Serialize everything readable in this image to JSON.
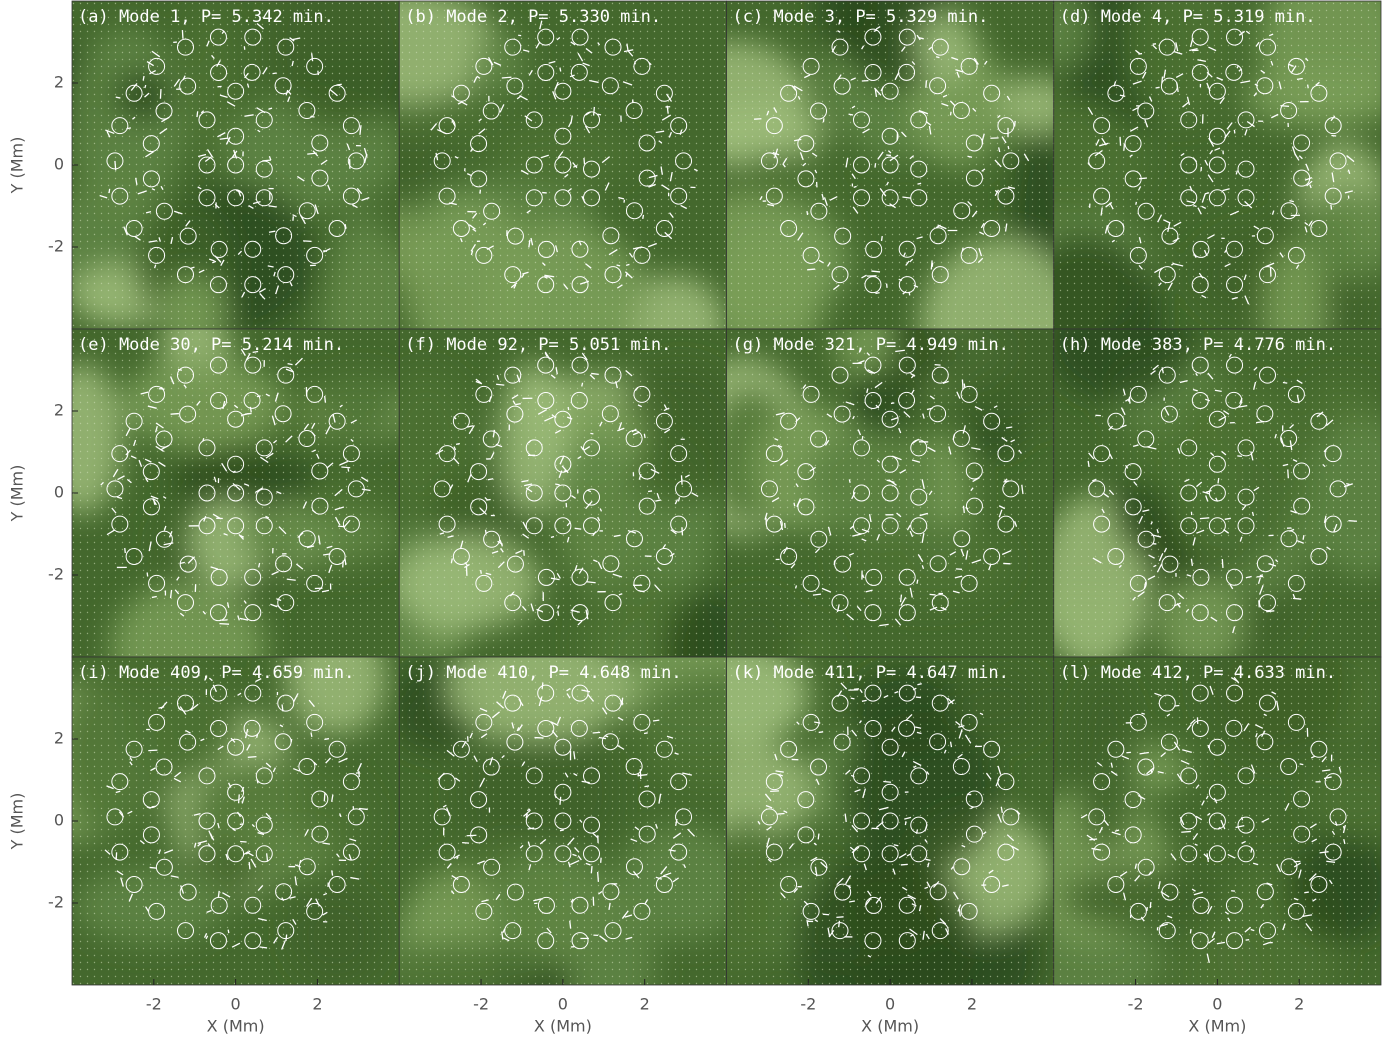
{
  "chart_data": [
    {
      "type": "vector-field",
      "title": "(a) Mode 1, P= 5.342 min.",
      "xlim": [
        -4,
        4
      ],
      "ylim": [
        -4,
        4
      ],
      "yticks": [
        -2,
        0,
        2
      ],
      "y_label": "Y (Mm)"
    },
    {
      "type": "vector-field",
      "title": "(b) Mode 2, P= 5.330 min.",
      "xlim": [
        -4,
        4
      ],
      "ylim": [
        -4,
        4
      ]
    },
    {
      "type": "vector-field",
      "title": "(c) Mode 3, P= 5.329 min.",
      "xlim": [
        -4,
        4
      ],
      "ylim": [
        -4,
        4
      ]
    },
    {
      "type": "vector-field",
      "title": "(d) Mode 4, P= 5.319 min.",
      "xlim": [
        -4,
        4
      ],
      "ylim": [
        -4,
        4
      ]
    },
    {
      "type": "vector-field",
      "title": "(e) Mode 30, P= 5.214 min.",
      "xlim": [
        -4,
        4
      ],
      "ylim": [
        -4,
        4
      ],
      "yticks": [
        -2,
        0,
        2
      ],
      "y_label": "Y (Mm)"
    },
    {
      "type": "vector-field",
      "title": "(f) Mode 92, P= 5.051 min.",
      "xlim": [
        -4,
        4
      ],
      "ylim": [
        -4,
        4
      ]
    },
    {
      "type": "vector-field",
      "title": "(g) Mode 321, P= 4.949 min.",
      "xlim": [
        -4,
        4
      ],
      "ylim": [
        -4,
        4
      ]
    },
    {
      "type": "vector-field",
      "title": "(h) Mode 383, P= 4.776 min.",
      "xlim": [
        -4,
        4
      ],
      "ylim": [
        -4,
        4
      ]
    },
    {
      "type": "vector-field",
      "title": "(i) Mode 409, P= 4.659 min.",
      "xlim": [
        -4,
        4
      ],
      "ylim": [
        -4,
        4
      ],
      "yticks": [
        -2,
        0,
        2
      ],
      "y_label": "Y (Mm)",
      "xticks": [
        -2,
        0,
        2
      ],
      "x_label": "X (Mm)"
    },
    {
      "type": "vector-field",
      "title": "(j) Mode 410, P= 4.648 min.",
      "xlim": [
        -4,
        4
      ],
      "ylim": [
        -4,
        4
      ],
      "xticks": [
        -2,
        0,
        2
      ],
      "x_label": "X (Mm)"
    },
    {
      "type": "vector-field",
      "title": "(k) Mode 411, P= 4.647 min.",
      "xlim": [
        -4,
        4
      ],
      "ylim": [
        -4,
        4
      ],
      "xticks": [
        -2,
        0,
        2
      ],
      "x_label": "X (Mm)"
    },
    {
      "type": "vector-field",
      "title": "(l) Mode 412, P= 4.633 min.",
      "xlim": [
        -4,
        4
      ],
      "ylim": [
        -4,
        4
      ],
      "xticks": [
        -2,
        0,
        2
      ],
      "x_label": "X (Mm)"
    }
  ]
}
